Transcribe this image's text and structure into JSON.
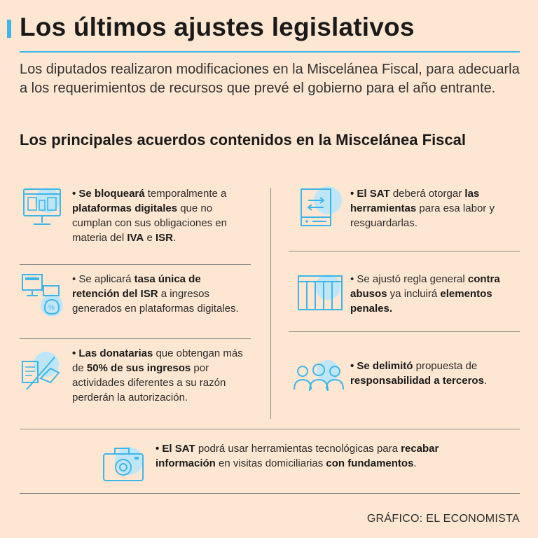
{
  "header": {
    "title": "Los últimos ajustes legislativos",
    "intro": "Los diputados realizaron modificaciones en la Miscelánea Fiscal, para adecuarla a los requerimientos de recursos que prevé el gobierno para el año entrante.",
    "subtitle": "Los principales acuerdos contenidos en la Miscelánea Fiscal"
  },
  "items": {
    "plataformas": {
      "bold1": "• Se bloqueará",
      "t1": " temporalmente a ",
      "bold2": "plataformas digitales",
      "t2": " que no cumplan con sus obligaciones en materia del ",
      "bold3": "IVA",
      "t3": " e ",
      "bold4": "ISR",
      "t4": "."
    },
    "tasa": {
      "t0": "• Se aplicará ",
      "bold1": "tasa única de retención del ISR",
      "t1": " a ingresos generados en plataformas digitales."
    },
    "donatarias": {
      "bold1": "• Las donatarias",
      "t1": " que obtengan más de ",
      "bold2": "50% de sus ingresos",
      "t2": " por actividades diferentes a su razón perderán la autorización."
    },
    "sat_herramientas": {
      "bold1": "• El SAT",
      "t1": " deberá otorgar ",
      "bold2": "las herramientas",
      "t2": " para esa labor y resguardarlas."
    },
    "abusos": {
      "t0": "• Se ajustó regla general ",
      "bold1": "contra abusos",
      "t1": " ya incluirá ",
      "bold2": "elementos penales."
    },
    "terceros": {
      "bold1": "• Se delimitó",
      "t1": " propuesta de ",
      "bold2": "responsabilidad a terceros",
      "t2": "."
    },
    "visitas": {
      "bold1": "• El SAT",
      "t1": " podrá usar herramientas tecnológicas para ",
      "bold2": "recabar información",
      "t2": " en visitas domiciliarias ",
      "bold3": "con fundamentos",
      "t3": "."
    }
  },
  "footer": {
    "credit": "GRÁFICO: EL ECONOMISTA"
  },
  "colors": {
    "background": "#fde6d2",
    "accent": "#3fb6e8",
    "icon_fill": "#bfe6f7",
    "text": "#2b2b2b"
  },
  "icons": [
    "monitor-icon",
    "computer-money-bag-icon",
    "handshake-document-icon",
    "server-transfer-icon",
    "prison-bars-icon",
    "people-group-icon",
    "camera-icon"
  ]
}
